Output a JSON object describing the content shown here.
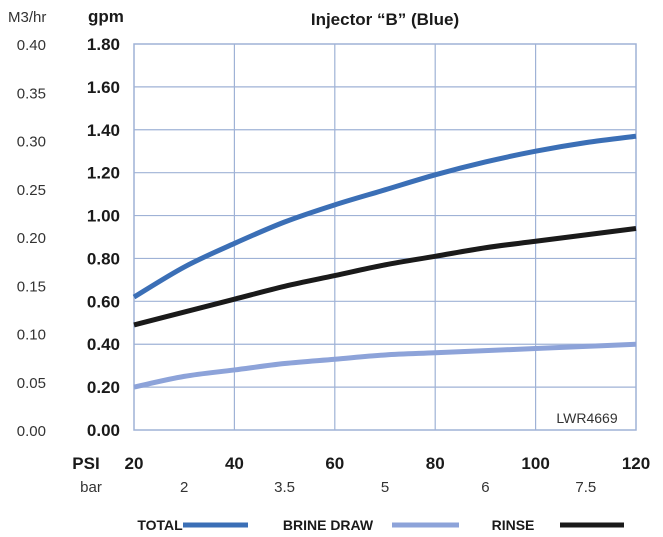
{
  "chart_data": {
    "type": "line",
    "title": "Injector “B” (Blue)",
    "watermark": "LWR4669",
    "y_left_unit": "M3/hr",
    "y_unit": "gpm",
    "x_unit": "PSI",
    "x2_unit": "bar",
    "x": [
      20,
      30,
      40,
      50,
      60,
      70,
      80,
      90,
      100,
      110,
      120
    ],
    "xlim": [
      20,
      120
    ],
    "ylim": [
      0,
      1.8
    ],
    "x_ticks": [
      "20",
      "40",
      "60",
      "80",
      "100",
      "120"
    ],
    "bar_ticks": [
      {
        "label": "2",
        "psi": 30
      },
      {
        "label": "3.5",
        "psi": 50
      },
      {
        "label": "5",
        "psi": 70
      },
      {
        "label": "6",
        "psi": 90
      },
      {
        "label": "7.5",
        "psi": 110
      }
    ],
    "y_ticks": [
      "0.00",
      "0.20",
      "0.40",
      "0.60",
      "0.80",
      "1.00",
      "1.20",
      "1.40",
      "1.60",
      "1.80"
    ],
    "y_left_ticks": [
      "0.00",
      "0.05",
      "0.10",
      "0.15",
      "0.20",
      "0.25",
      "0.30",
      "0.35",
      "0.40"
    ],
    "grid": true,
    "legend_position": "bottom",
    "series": [
      {
        "name": "TOTAL",
        "color": "#3b6fb6",
        "values": [
          0.62,
          0.76,
          0.87,
          0.97,
          1.05,
          1.12,
          1.19,
          1.25,
          1.3,
          1.34,
          1.37
        ]
      },
      {
        "name": "BRINE DRAW",
        "color": "#8da3d9",
        "values": [
          0.2,
          0.25,
          0.28,
          0.31,
          0.33,
          0.35,
          0.36,
          0.37,
          0.38,
          0.39,
          0.4
        ]
      },
      {
        "name": "RINSE",
        "color": "#1a1a1a",
        "values": [
          0.49,
          0.55,
          0.61,
          0.67,
          0.72,
          0.77,
          0.81,
          0.85,
          0.88,
          0.91,
          0.94
        ]
      }
    ]
  }
}
